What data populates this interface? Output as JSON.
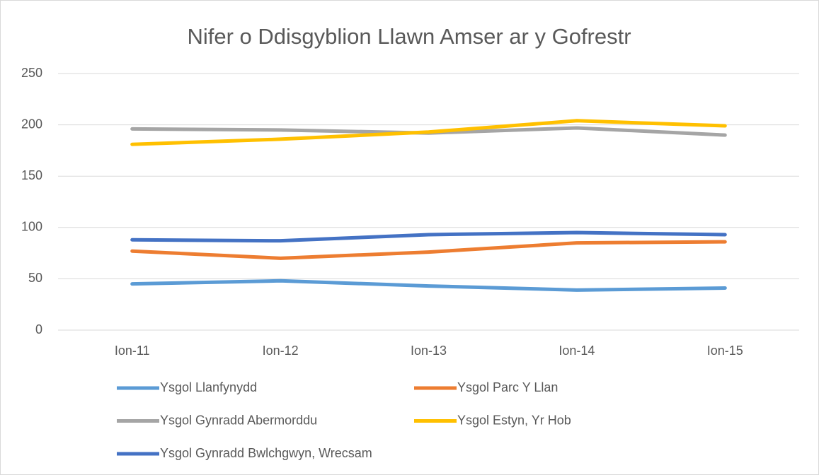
{
  "chart_data": {
    "type": "line",
    "title": "Nifer o Ddisgyblion Llawn Amser ar y Gofrestr",
    "categories": [
      "Ion-11",
      "Ion-12",
      "Ion-13",
      "Ion-14",
      "Ion-15"
    ],
    "series": [
      {
        "name": "Ysgol Llanfynydd",
        "color": "#5b9bd5",
        "values": [
          45,
          48,
          43,
          39,
          41
        ]
      },
      {
        "name": "Ysgol Parc Y Llan",
        "color": "#ed7d31",
        "values": [
          77,
          70,
          76,
          85,
          86
        ]
      },
      {
        "name": "Ysgol Gynradd Abermorddu",
        "color": "#a5a5a5",
        "values": [
          196,
          195,
          192,
          197,
          190
        ]
      },
      {
        "name": "Ysgol Estyn, Yr Hob",
        "color": "#ffc000",
        "values": [
          181,
          186,
          193,
          204,
          199
        ]
      },
      {
        "name": "Ysgol Gynradd Bwlchgwyn, Wrecsam",
        "color": "#4472c4",
        "values": [
          88,
          87,
          93,
          95,
          93
        ]
      }
    ],
    "ylim": [
      0,
      250
    ],
    "yticks": [
      0,
      50,
      100,
      150,
      200,
      250
    ],
    "grid": true,
    "legend": "bottom"
  }
}
